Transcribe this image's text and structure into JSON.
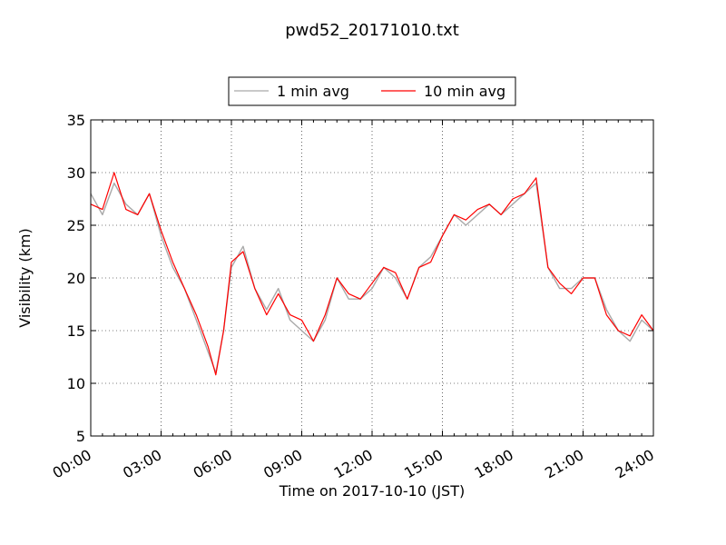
{
  "chart_data": {
    "type": "line",
    "title": "pwd52_20171010.txt",
    "xlabel": "Time on 2017-10-10 (JST)",
    "ylabel": "Visibility (km)",
    "xlim": [
      "00:00",
      "24:00"
    ],
    "ylim": [
      5,
      35
    ],
    "x_ticks": [
      "00:00",
      "03:00",
      "06:00",
      "09:00",
      "12:00",
      "15:00",
      "18:00",
      "21:00",
      "24:00"
    ],
    "y_ticks": [
      "5",
      "10",
      "15",
      "20",
      "25",
      "30",
      "35"
    ],
    "grid": true,
    "legend_position": "top-center",
    "series": [
      {
        "name": "1 min avg",
        "color": "#a9a9a9",
        "x": [
          "00:00",
          "00:30",
          "01:00",
          "01:30",
          "02:00",
          "02:30",
          "03:00",
          "03:30",
          "04:00",
          "04:30",
          "05:00",
          "05:20",
          "05:40",
          "06:00",
          "06:30",
          "07:00",
          "07:30",
          "08:00",
          "08:30",
          "09:00",
          "09:30",
          "10:00",
          "10:30",
          "11:00",
          "11:30",
          "12:00",
          "12:30",
          "13:00",
          "13:30",
          "14:00",
          "14:30",
          "15:00",
          "15:30",
          "16:00",
          "16:30",
          "17:00",
          "17:30",
          "18:00",
          "18:30",
          "19:00",
          "19:30",
          "20:00",
          "20:30",
          "21:00",
          "21:30",
          "22:00",
          "22:30",
          "23:00",
          "23:30",
          "24:00"
        ],
        "values": [
          28,
          26,
          29,
          27,
          26,
          28,
          24,
          21,
          19,
          16,
          13,
          11,
          15,
          21,
          23,
          19,
          17,
          19,
          16,
          15,
          14,
          16,
          20,
          18,
          18,
          19,
          21,
          20,
          18,
          21,
          22,
          24,
          26,
          25,
          26,
          27,
          26,
          27,
          28,
          29,
          21,
          19,
          19,
          20,
          20,
          17,
          15,
          14,
          16,
          15
        ]
      },
      {
        "name": "10 min avg",
        "color": "#ff0000",
        "x": [
          "00:00",
          "00:30",
          "01:00",
          "01:30",
          "02:00",
          "02:30",
          "03:00",
          "03:30",
          "04:00",
          "04:30",
          "05:00",
          "05:20",
          "05:40",
          "06:00",
          "06:30",
          "07:00",
          "07:30",
          "08:00",
          "08:30",
          "09:00",
          "09:30",
          "10:00",
          "10:30",
          "11:00",
          "11:30",
          "12:00",
          "12:30",
          "13:00",
          "13:30",
          "14:00",
          "14:30",
          "15:00",
          "15:30",
          "16:00",
          "16:30",
          "17:00",
          "17:30",
          "18:00",
          "18:30",
          "19:00",
          "19:30",
          "20:00",
          "20:30",
          "21:00",
          "21:30",
          "22:00",
          "22:30",
          "23:00",
          "23:30",
          "24:00"
        ],
        "values": [
          27,
          26.5,
          30,
          26.5,
          26,
          28,
          24.5,
          21.5,
          19,
          16.5,
          13.5,
          10.8,
          15,
          21.5,
          22.5,
          19,
          16.5,
          18.5,
          16.5,
          16,
          14,
          16.5,
          20,
          18.5,
          18,
          19.5,
          21,
          20.5,
          18,
          21,
          21.5,
          24,
          26,
          25.5,
          26.5,
          27,
          26,
          27.5,
          28,
          29.5,
          21,
          19.5,
          18.5,
          20,
          20,
          16.5,
          15,
          14.5,
          16.5,
          15
        ]
      }
    ]
  }
}
